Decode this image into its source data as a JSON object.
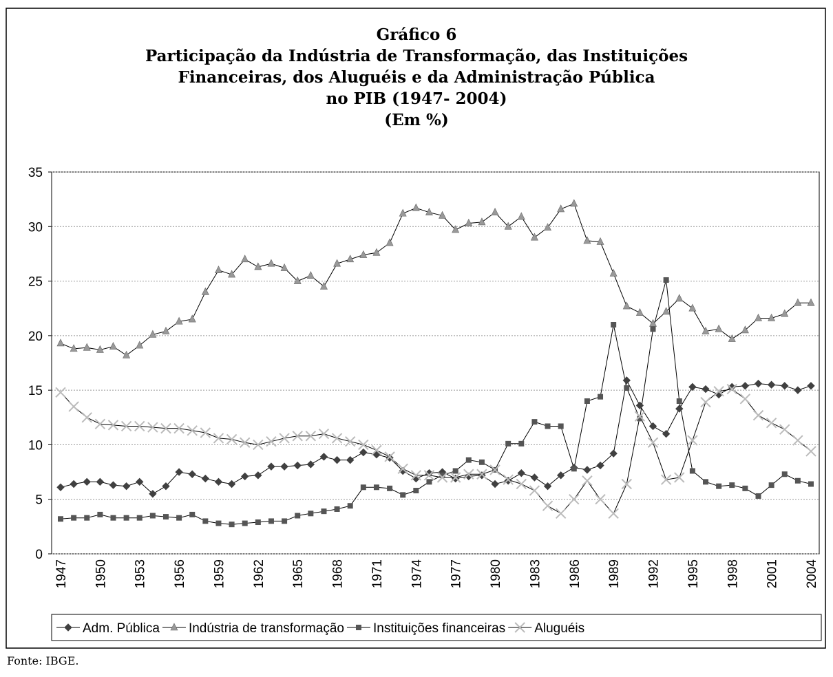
{
  "chart_data": {
    "type": "line",
    "title": [
      "Gráfico 6",
      "Participação da Indústria de Transformação, das Instituições",
      "Financeiras, dos Aluguéis e da Administração Pública",
      "no PIB (1947- 2004)",
      "(Em %)"
    ],
    "source": "Fonte: IBGE.",
    "categories": [
      "1947",
      null,
      null,
      "1950",
      null,
      null,
      "1953",
      null,
      null,
      "1956",
      null,
      null,
      "1959",
      null,
      null,
      "1962",
      null,
      null,
      "1965",
      null,
      null,
      "1968",
      null,
      null,
      "1971",
      null,
      null,
      "1974",
      null,
      null,
      "1977",
      null,
      null,
      "1980",
      null,
      null,
      "1983",
      null,
      null,
      "1986",
      null,
      null,
      "1989",
      null,
      null,
      "1992",
      null,
      null,
      "1995",
      null,
      null,
      "1998",
      null,
      null,
      "2001",
      null,
      null,
      "2004"
    ],
    "ylim": [
      0,
      35
    ],
    "yticks": [
      0,
      5,
      10,
      15,
      20,
      25,
      30,
      35
    ],
    "grid": true,
    "legend": "bottom",
    "series": [
      {
        "name": "Adm. Pública",
        "color": "#404040",
        "marker": "diamond",
        "values": [
          6.1,
          6.4,
          6.6,
          6.6,
          6.3,
          6.2,
          6.6,
          5.5,
          6.2,
          7.5,
          7.3,
          6.9,
          6.6,
          6.4,
          7.1,
          7.2,
          8.0,
          8.0,
          8.1,
          8.2,
          8.9,
          8.6,
          8.6,
          9.3,
          9.1,
          8.8,
          7.6,
          6.9,
          7.4,
          7.5,
          6.9,
          7.1,
          7.2,
          6.4,
          6.7,
          7.4,
          7.0,
          6.2,
          7.2,
          7.9,
          7.7,
          8.1,
          9.2,
          15.9,
          13.6,
          11.7,
          11.0,
          13.3,
          15.3,
          15.1,
          14.6,
          15.3,
          15.4,
          15.6,
          15.5,
          15.4,
          15.0,
          15.4
        ]
      },
      {
        "name": "Indústria de transformação",
        "color": "#999999",
        "marker": "triangle",
        "values": [
          19.3,
          18.8,
          18.9,
          18.7,
          19.0,
          18.2,
          19.1,
          20.1,
          20.4,
          21.3,
          21.5,
          24.0,
          26.0,
          25.6,
          27.0,
          26.3,
          26.6,
          26.2,
          25.0,
          25.5,
          24.5,
          26.6,
          27.0,
          27.4,
          27.6,
          28.5,
          31.2,
          31.7,
          31.3,
          31.0,
          29.7,
          30.3,
          30.4,
          31.3,
          30.0,
          30.9,
          29.0,
          29.9,
          31.6,
          32.1,
          28.7,
          28.6,
          25.7,
          22.7,
          22.1,
          21.1,
          22.2,
          23.4,
          22.5,
          20.4,
          20.6,
          19.7,
          20.5,
          21.6,
          21.6,
          22.0,
          23.0,
          23.0
        ]
      },
      {
        "name": "Instituições financeiras",
        "color": "#555555",
        "marker": "square",
        "values": [
          3.2,
          3.3,
          3.3,
          3.6,
          3.3,
          3.3,
          3.3,
          3.5,
          3.4,
          3.3,
          3.6,
          3.0,
          2.8,
          2.7,
          2.8,
          2.9,
          3.0,
          3.0,
          3.5,
          3.7,
          3.9,
          4.1,
          4.4,
          6.1,
          6.1,
          6.0,
          5.4,
          5.8,
          6.6,
          7.2,
          7.6,
          8.6,
          8.4,
          7.7,
          10.1,
          10.1,
          12.1,
          11.7,
          11.7,
          7.8,
          14.0,
          14.4,
          21.0,
          15.2,
          12.4,
          20.6,
          25.1,
          14.0,
          7.6,
          6.6,
          6.2,
          6.3,
          6.0,
          5.3,
          6.3,
          7.3,
          6.7,
          6.4
        ]
      },
      {
        "name": "Aluguéis",
        "color": "#bbbbbb",
        "marker": "x",
        "values": [
          14.8,
          13.5,
          12.5,
          11.9,
          11.8,
          11.7,
          11.7,
          11.6,
          11.5,
          11.5,
          11.3,
          11.1,
          10.6,
          10.5,
          10.2,
          10.0,
          10.3,
          10.6,
          10.8,
          10.8,
          11.0,
          10.6,
          10.3,
          10.0,
          9.5,
          8.9,
          7.8,
          7.2,
          7.2,
          7.0,
          7.0,
          7.3,
          7.3,
          7.7,
          6.8,
          6.4,
          5.8,
          4.4,
          3.7,
          5.0,
          6.7,
          5.0,
          3.7,
          6.4,
          12.6,
          10.2,
          6.8,
          7.0,
          10.4,
          13.9,
          14.9,
          15.1,
          14.2,
          12.7,
          12.0,
          11.4,
          10.4,
          9.4
        ]
      }
    ]
  }
}
